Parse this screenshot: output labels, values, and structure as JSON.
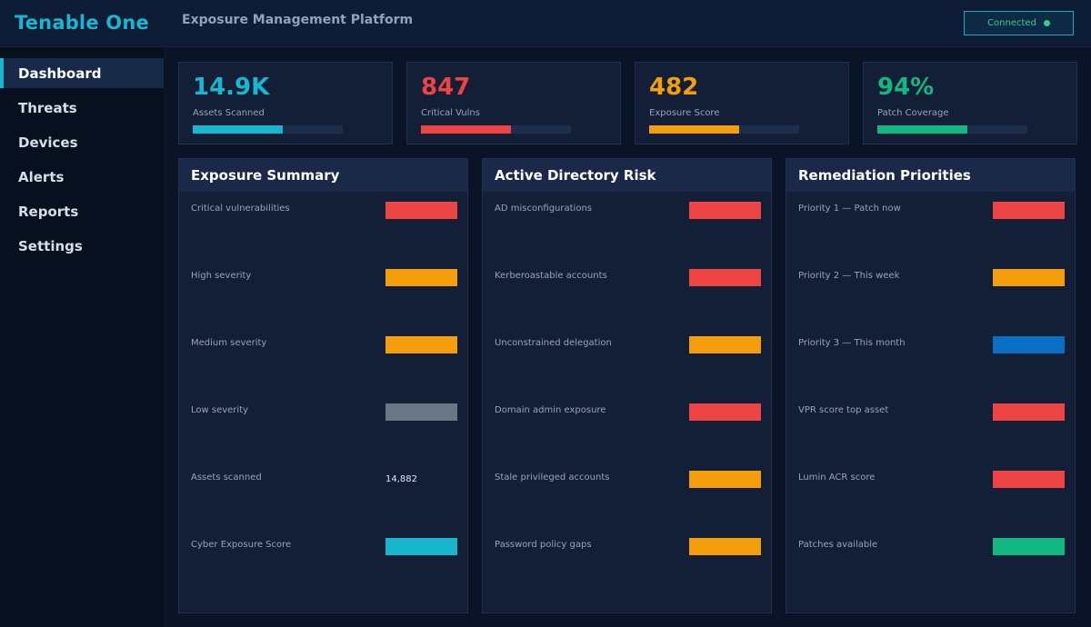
{
  "app": {
    "brand": "Tenable One",
    "platform": "Exposure Management Platform",
    "status": "Connected"
  },
  "sidebar": {
    "items": [
      {
        "label": "Dashboard",
        "active": true
      },
      {
        "label": "Threats"
      },
      {
        "label": "Devices"
      },
      {
        "label": "Alerts"
      },
      {
        "label": "Reports"
      },
      {
        "label": "Settings"
      }
    ]
  },
  "kpis": [
    {
      "value": "14.9K",
      "label": "Assets Scanned",
      "color": "#19b6cf",
      "fill": 0.6
    },
    {
      "value": "847",
      "label": "Critical Vulns",
      "color": "#ef4444",
      "fill": 0.6
    },
    {
      "value": "482",
      "label": "Exposure Score",
      "color": "#f59e0b",
      "fill": 0.6
    },
    {
      "value": "94%",
      "label": "Patch Coverage",
      "color": "#10b981",
      "fill": 0.6
    }
  ],
  "colors": {
    "critical": "#ef4444",
    "high": "#f59e0b",
    "info": "#0a6fc2",
    "neutral": "#6b7684",
    "accent": "#19b6cf",
    "good": "#10b981"
  },
  "panels": [
    {
      "title": "Exposure Summary",
      "rows": [
        {
          "label": "Critical vulnerabilities",
          "bar": "#ef4444"
        },
        {
          "label": "High severity",
          "bar": "#f59e0b"
        },
        {
          "label": "Medium severity",
          "bar": "#f59e0b"
        },
        {
          "label": "Low severity",
          "bar": "#6b7684"
        },
        {
          "label": "Assets scanned",
          "text": "14,882"
        },
        {
          "label": "Cyber Exposure Score",
          "bar": "#19b6cf"
        }
      ]
    },
    {
      "title": "Active Directory Risk",
      "rows": [
        {
          "label": "AD misconfigurations",
          "bar": "#ef4444"
        },
        {
          "label": "Kerberoastable accounts",
          "bar": "#ef4444"
        },
        {
          "label": "Unconstrained delegation",
          "bar": "#f59e0b"
        },
        {
          "label": "Domain admin exposure",
          "bar": "#ef4444"
        },
        {
          "label": "Stale privileged accounts",
          "bar": "#f59e0b"
        },
        {
          "label": "Password policy gaps",
          "bar": "#f59e0b"
        }
      ]
    },
    {
      "title": "Remediation Priorities",
      "rows": [
        {
          "label": "Priority 1 — Patch now",
          "bar": "#ef4444"
        },
        {
          "label": "Priority 2 — This week",
          "bar": "#f59e0b"
        },
        {
          "label": "Priority 3 — This month",
          "bar": "#0a6fc2"
        },
        {
          "label": "VPR score top asset",
          "bar": "#ef4444"
        },
        {
          "label": "Lumin ACR score",
          "bar": "#ef4444"
        },
        {
          "label": "Patches available",
          "bar": "#10b981"
        }
      ]
    }
  ]
}
